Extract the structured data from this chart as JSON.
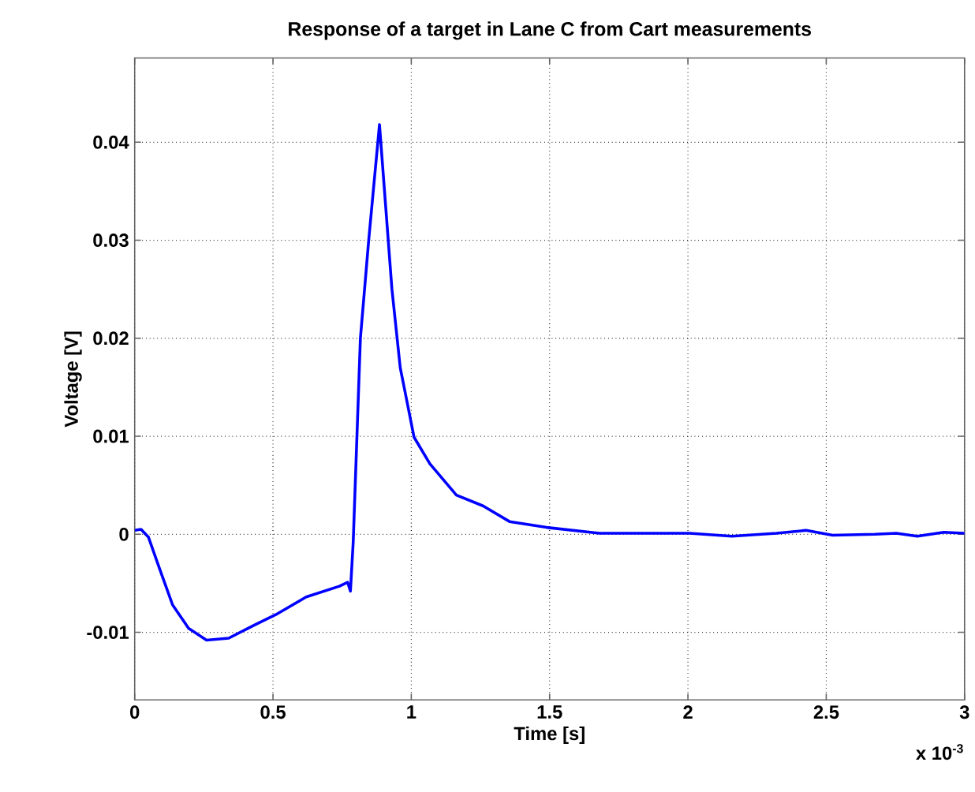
{
  "chart_data": {
    "type": "line",
    "title": "Response of a target in Lane C from Cart measurements",
    "xlabel": "Time [s]",
    "ylabel": "Voltage [V]",
    "annotations": [
      "x 10$^{-3}$"
    ],
    "xlim": [
      0,
      3
    ],
    "ylim": [
      -0.0169,
      0.0486
    ],
    "xticks": [
      0,
      0.5,
      1,
      1.5,
      2,
      2.5,
      3
    ],
    "yticks": [
      -0.01,
      0,
      0.01,
      0.02,
      0.03,
      0.04
    ],
    "grid": true,
    "line_style": "solid",
    "marker": "none",
    "series": [
      {
        "color": "#0000ff",
        "x": [
          0,
          0.023,
          0.05,
          0.09,
          0.137,
          0.195,
          0.26,
          0.34,
          0.43,
          0.51,
          0.62,
          0.74,
          0.77,
          0.78,
          0.79,
          0.816,
          0.846,
          0.885,
          0.93,
          0.96,
          1.01,
          1.067,
          1.163,
          1.259,
          1.355,
          1.489,
          1.68,
          2.006,
          2.159,
          2.32,
          2.427,
          2.523,
          2.676,
          2.753,
          2.829,
          2.925,
          3.0
        ],
        "values": [
          0.0004,
          0.0005,
          -0.0003,
          -0.0035,
          -0.0072,
          -0.0096,
          -0.0108,
          -0.0106,
          -0.0093,
          -0.0082,
          -0.0064,
          -0.0053,
          -0.0049,
          -0.0058,
          -0.0008,
          0.02,
          0.03,
          0.0418,
          0.025,
          0.017,
          0.0099,
          0.0072,
          0.004,
          0.0029,
          0.0013,
          0.0007,
          0.0001,
          0.0001,
          -0.0002,
          0.0001,
          0.0004,
          -0.0001,
          0,
          0.0001,
          -0.0002,
          0.0002,
          0.0001
        ]
      }
    ]
  }
}
